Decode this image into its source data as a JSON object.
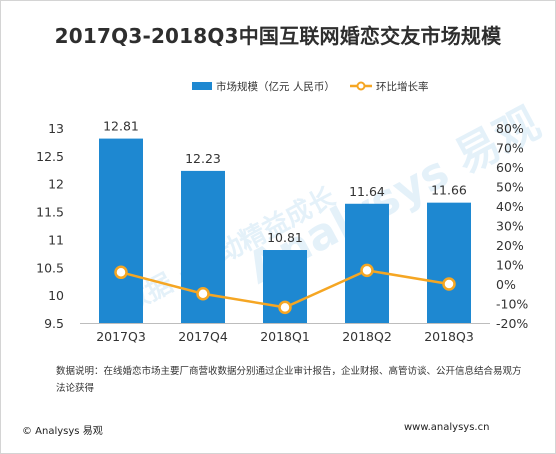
{
  "title": "2017Q3-2018Q3中国互联网婚恋交友市场规模",
  "note": "数据说明：在线婚恋市场主要厂商营收数据分别通过企业审计报告，企业财报、高管访谈、公开信息结合易观方法论获得",
  "footer": {
    "brand": "© Analysys 易观",
    "url": "www.analysys.cn"
  },
  "watermark": {
    "brand": "Analysys 易观",
    "cn": "数据 · 驱动精益成长"
  },
  "colors": {
    "bar": "#1e88d1",
    "line": "#f5a623",
    "point_fill": "#ffffff",
    "text": "#333333"
  },
  "chart_data": {
    "type": "bar",
    "categories": [
      "2017Q3",
      "2017Q4",
      "2018Q1",
      "2018Q2",
      "2018Q3"
    ],
    "series": [
      {
        "name": "市场规模（亿元 人民币）",
        "type": "bar",
        "axis": "left",
        "values": [
          12.81,
          12.23,
          10.81,
          11.64,
          11.66
        ]
      },
      {
        "name": "环比增长率",
        "type": "line",
        "axis": "right",
        "values": [
          6.0,
          -5.0,
          -12.0,
          7.0,
          0.0
        ]
      }
    ],
    "y_left": {
      "min": 9.5,
      "max": 13,
      "ticks": [
        "9.5",
        "10",
        "10.5",
        "11",
        "11.5",
        "12",
        "12.5",
        "13"
      ]
    },
    "y_right": {
      "min": -20,
      "max": 80,
      "ticks": [
        "-20%",
        "-10%",
        "0%",
        "10%",
        "20%",
        "30%",
        "40%",
        "50%",
        "60%",
        "70%",
        "80%"
      ]
    },
    "data_labels": [
      "12.81",
      "12.23",
      "10.81",
      "11.64",
      "11.66"
    ],
    "legend_position": "top-right",
    "grid": false
  }
}
